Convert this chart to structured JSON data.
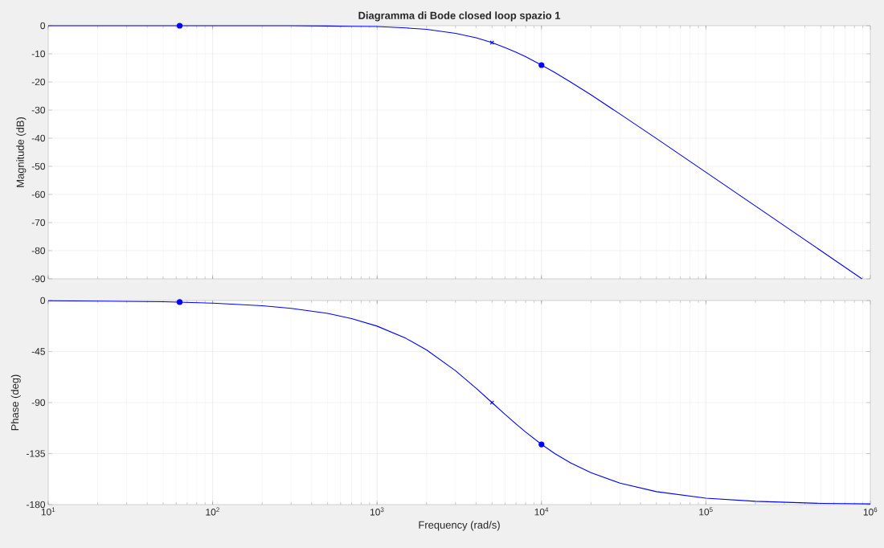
{
  "chart_data": [
    {
      "type": "line",
      "title": "Diagramma di Bode closed loop spazio 1",
      "ylabel": "Magnitude (dB)",
      "log": "x",
      "grid": true,
      "tick_labels": "y",
      "xlim": [
        10,
        1000000
      ],
      "xticks": [
        10,
        100,
        1000,
        10000,
        100000,
        1000000
      ],
      "ylim": [
        -90,
        0
      ],
      "yticks": [
        -90,
        -80,
        -70,
        -60,
        -50,
        -40,
        -30,
        -20,
        -10,
        0
      ],
      "series": [
        {
          "color": "#0000ff",
          "x": [
            10,
            20,
            50,
            100,
            200,
            300,
            500,
            700,
            1000,
            1500,
            2000,
            3000,
            4000,
            5000,
            6000,
            7000,
            8000,
            10000,
            12000,
            15000,
            20000,
            30000,
            50000,
            100000,
            200000,
            500000,
            889000
          ],
          "values": [
            0,
            0,
            0,
            0,
            0,
            0,
            -0.1,
            -0.2,
            -0.3,
            -0.8,
            -1.3,
            -2.7,
            -4.3,
            -6.0,
            -7.8,
            -9.4,
            -11.0,
            -14.0,
            -16.6,
            -20.0,
            -24.6,
            -31.4,
            -40.1,
            -52.1,
            -64.1,
            -80.0,
            -90.0
          ]
        },
        {
          "type": "scatter",
          "marker": "circle",
          "color": "#0000ff",
          "x": [
            63
          ],
          "values": [
            0
          ]
        },
        {
          "type": "scatter",
          "marker": "cross",
          "color": "#0000ff",
          "x": [
            5000
          ],
          "values": [
            -6.0
          ]
        },
        {
          "type": "scatter",
          "marker": "circle",
          "color": "#0000ff",
          "x": [
            10000
          ],
          "values": [
            -14.0
          ]
        }
      ]
    },
    {
      "type": "line",
      "xlabel": "Frequency (rad/s)",
      "ylabel": "Phase (deg)",
      "log": "x",
      "grid": true,
      "xlim": [
        10,
        1000000
      ],
      "xticks": [
        {
          "value": 10,
          "label": "10$^{1}$"
        },
        {
          "value": 100,
          "label": "10$^{2}$"
        },
        {
          "value": 1000,
          "label": "10$^{3}$"
        },
        {
          "value": 10000,
          "label": "10$^{4}$"
        },
        {
          "value": 100000,
          "label": "10$^{5}$"
        },
        {
          "value": 1000000,
          "label": "10$^{6}$"
        }
      ],
      "ylim": [
        -180,
        0
      ],
      "yticks": [
        -180,
        -135,
        -90,
        -45,
        0
      ],
      "series": [
        {
          "color": "#0000ff",
          "x": [
            10,
            20,
            50,
            100,
            200,
            300,
            500,
            700,
            1000,
            1500,
            2000,
            3000,
            4000,
            5000,
            6000,
            7000,
            8000,
            10000,
            12000,
            15000,
            20000,
            30000,
            50000,
            100000,
            200000,
            500000,
            1000000
          ],
          "values": [
            -0.2,
            -0.5,
            -1.1,
            -2.3,
            -4.6,
            -6.9,
            -11.4,
            -15.9,
            -22.6,
            -33.4,
            -43.6,
            -61.9,
            -77.3,
            -90.0,
            -100.4,
            -108.9,
            -116.0,
            -126.9,
            -134.8,
            -143.1,
            -151.9,
            -161.1,
            -168.6,
            -174.3,
            -177.1,
            -178.9,
            -179.4
          ]
        },
        {
          "type": "scatter",
          "marker": "circle",
          "color": "#0000ff",
          "x": [
            63
          ],
          "values": [
            -1.4
          ]
        },
        {
          "type": "scatter",
          "marker": "cross",
          "color": "#0000ff",
          "x": [
            5000
          ],
          "values": [
            -90.0
          ]
        },
        {
          "type": "scatter",
          "marker": "circle",
          "color": "#0000ff",
          "x": [
            10000
          ],
          "values": [
            -126.9
          ]
        }
      ]
    }
  ]
}
